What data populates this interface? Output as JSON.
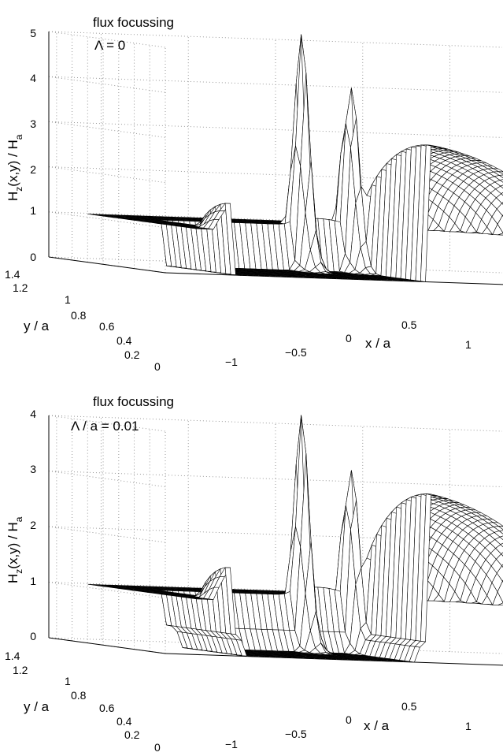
{
  "chart_data": [
    {
      "type": "surface",
      "title": "flux focussing",
      "subtitle": "Λ = 0",
      "xlabel": "x / a",
      "ylabel": "y / a",
      "zlabel": "H_z(x,y) / H_a",
      "zlabel_parts": {
        "main": "H",
        "sub1": "z",
        "mid": "(x,y) / H",
        "sub2": "a"
      },
      "x_ticks": [
        "−1",
        "−0.5",
        "0",
        "0.5",
        "1"
      ],
      "y_ticks": [
        "0",
        "0.2",
        "0.4",
        "0.6",
        "0.8",
        "1",
        "1.2",
        "1.4"
      ],
      "z_ticks": [
        "0",
        "1",
        "2",
        "3",
        "4",
        "5"
      ],
      "xlim": [
        -1.3,
        1.3
      ],
      "ylim": [
        0,
        1.5
      ],
      "zlim": [
        0,
        5
      ],
      "grid": true,
      "inner_zero_region": {
        "x": [
          -0.9,
          0.2
        ],
        "y": [
          0,
          0.9
        ]
      },
      "peaks": [
        {
          "x": -0.1,
          "y": 0.95,
          "z": 5.3
        },
        {
          "x": 0.18,
          "y": 0.95,
          "z": 4.6
        }
      ],
      "mesh": "stepped"
    },
    {
      "type": "surface",
      "title": "flux focussing",
      "subtitle": "Λ / a = 0.01",
      "xlabel": "x / a",
      "ylabel": "y / a",
      "zlabel": "H_z(x,y) / H_a",
      "zlabel_parts": {
        "main": "H",
        "sub1": "z",
        "mid": "(x,y) / H",
        "sub2": "a"
      },
      "x_ticks": [
        "−1",
        "−0.5",
        "0",
        "0.5",
        "1"
      ],
      "y_ticks": [
        "0",
        "0.2",
        "0.4",
        "0.6",
        "0.8",
        "1",
        "1.2",
        "1.4"
      ],
      "z_ticks": [
        "0",
        "1",
        "2",
        "3",
        "4"
      ],
      "xlim": [
        -1.3,
        1.3
      ],
      "ylim": [
        0,
        1.5
      ],
      "zlim": [
        0,
        4
      ],
      "grid": true,
      "inner_zero_region": {
        "x": [
          -0.9,
          0.2
        ],
        "y": [
          0,
          0.9
        ]
      },
      "peaks": [
        {
          "x": -0.1,
          "y": 0.95,
          "z": 4.3
        },
        {
          "x": 0.18,
          "y": 0.95,
          "z": 3.7
        }
      ],
      "mesh": "smooth"
    }
  ]
}
